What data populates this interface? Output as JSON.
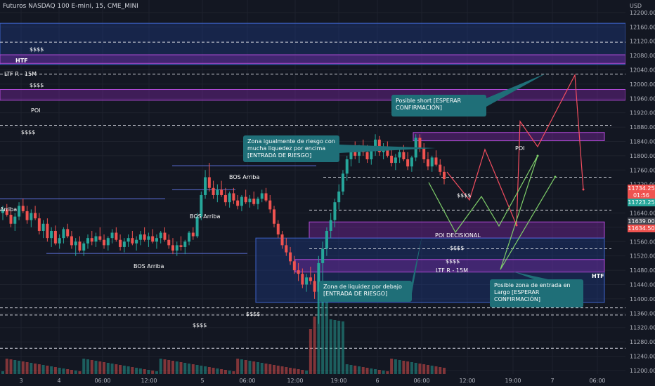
{
  "header": {
    "symbol_title": "Futuros NASDAQ 100 E-mini, 15, CME_MINI",
    "currency": "USD"
  },
  "colors": {
    "background": "#131722",
    "up_candle": "#26a69a",
    "down_candle": "#ef5350",
    "zone_blue": "#1e3a8a",
    "zone_purple": "#6a1b9a",
    "callout": "#1f6f78",
    "projection_red": "#f44d5f",
    "projection_green": "#7fcf6a"
  },
  "chart_data": {
    "type": "candlestick",
    "y_axis": {
      "ticks": [
        12200,
        12160,
        12120,
        12080,
        12040,
        12000,
        11960,
        11920,
        11880,
        11840,
        11800,
        11760,
        11720,
        11680,
        11640,
        11600,
        11560,
        11520,
        11480,
        11440,
        11400,
        11360,
        11320,
        11280,
        11240,
        11200
      ],
      "tick_labels": [
        "12200.00",
        "12160.00",
        "12120.00",
        "12080.00",
        "12040.00",
        "12000.00",
        "11960.00",
        "11920.00",
        "11880.00",
        "11840.00",
        "11800.00",
        "11760.00",
        "11720.00",
        "11680.00",
        "11640.00",
        "11600.00",
        "11560.00",
        "11520.00",
        "11480.00",
        "11440.00",
        "11400.00",
        "11360.00",
        "11320.00",
        "11280.00",
        "11240.00",
        "11200.00"
      ],
      "range": [
        11190,
        12235
      ]
    },
    "x_axis": {
      "tick_labels": [
        "3",
        "4",
        "06:00",
        "12:00",
        "5",
        "06:00",
        "12:00",
        "19:00",
        "6",
        "06:00",
        "12:00",
        "19:00",
        "7",
        "06:00"
      ]
    },
    "price_tags": [
      {
        "label": "11734.25",
        "color": "#ef5350"
      },
      {
        "label": "01:56",
        "color": "#ef5350"
      },
      {
        "label": "11723.25",
        "color": "#26a69a"
      },
      {
        "label": "11639.00",
        "color": "#434651"
      },
      {
        "label": "11634.50",
        "color": "#ef5350"
      }
    ],
    "candles_ohlc": [
      [
        11640,
        11660,
        11620,
        11650
      ],
      [
        11650,
        11665,
        11630,
        11635
      ],
      [
        11635,
        11650,
        11600,
        11610
      ],
      [
        11610,
        11640,
        11590,
        11630
      ],
      [
        11630,
        11670,
        11620,
        11660
      ],
      [
        11660,
        11680,
        11640,
        11645
      ],
      [
        11645,
        11660,
        11610,
        11620
      ],
      [
        11620,
        11650,
        11600,
        11640
      ],
      [
        11640,
        11660,
        11620,
        11625
      ],
      [
        11625,
        11640,
        11580,
        11590
      ],
      [
        11590,
        11620,
        11570,
        11610
      ],
      [
        11610,
        11625,
        11560,
        11570
      ],
      [
        11570,
        11600,
        11545,
        11590
      ],
      [
        11590,
        11605,
        11550,
        11555
      ],
      [
        11555,
        11580,
        11540,
        11570
      ],
      [
        11570,
        11600,
        11555,
        11595
      ],
      [
        11595,
        11610,
        11570,
        11575
      ],
      [
        11575,
        11590,
        11540,
        11550
      ],
      [
        11550,
        11570,
        11520,
        11560
      ],
      [
        11560,
        11575,
        11530,
        11535
      ],
      [
        11535,
        11560,
        11520,
        11555
      ],
      [
        11555,
        11580,
        11540,
        11570
      ],
      [
        11570,
        11590,
        11550,
        11560
      ],
      [
        11560,
        11585,
        11545,
        11575
      ],
      [
        11575,
        11600,
        11560,
        11565
      ],
      [
        11565,
        11580,
        11540,
        11550
      ],
      [
        11550,
        11575,
        11535,
        11570
      ],
      [
        11570,
        11595,
        11555,
        11585
      ],
      [
        11585,
        11600,
        11560,
        11565
      ],
      [
        11565,
        11580,
        11535,
        11545
      ],
      [
        11545,
        11570,
        11530,
        11560
      ],
      [
        11560,
        11580,
        11545,
        11570
      ],
      [
        11570,
        11590,
        11550,
        11555
      ],
      [
        11555,
        11575,
        11535,
        11565
      ],
      [
        11565,
        11590,
        11550,
        11580
      ],
      [
        11580,
        11600,
        11560,
        11565
      ],
      [
        11565,
        11585,
        11545,
        11575
      ],
      [
        11575,
        11595,
        11555,
        11560
      ],
      [
        11560,
        11580,
        11540,
        11570
      ],
      [
        11570,
        11590,
        11555,
        11585
      ],
      [
        11585,
        11600,
        11560,
        11565
      ],
      [
        11565,
        11580,
        11540,
        11550
      ],
      [
        11550,
        11570,
        11525,
        11535
      ],
      [
        11535,
        11560,
        11520,
        11550
      ],
      [
        11550,
        11575,
        11535,
        11545
      ],
      [
        11545,
        11565,
        11525,
        11560
      ],
      [
        11560,
        11590,
        11550,
        11585
      ],
      [
        11585,
        11600,
        11565,
        11575
      ],
      [
        11575,
        11640,
        11570,
        11630
      ],
      [
        11630,
        11700,
        11620,
        11690
      ],
      [
        11690,
        11760,
        11680,
        11740
      ],
      [
        11740,
        11780,
        11700,
        11710
      ],
      [
        11710,
        11730,
        11680,
        11690
      ],
      [
        11690,
        11720,
        11670,
        11705
      ],
      [
        11705,
        11730,
        11685,
        11690
      ],
      [
        11690,
        11710,
        11660,
        11670
      ],
      [
        11670,
        11700,
        11655,
        11695
      ],
      [
        11695,
        11710,
        11665,
        11675
      ],
      [
        11675,
        11690,
        11650,
        11660
      ],
      [
        11660,
        11690,
        11645,
        11685
      ],
      [
        11685,
        11705,
        11665,
        11670
      ],
      [
        11670,
        11690,
        11655,
        11680
      ],
      [
        11680,
        11700,
        11660,
        11665
      ],
      [
        11665,
        11685,
        11650,
        11680
      ],
      [
        11680,
        11705,
        11670,
        11695
      ],
      [
        11695,
        11710,
        11670,
        11675
      ],
      [
        11675,
        11690,
        11640,
        11650
      ],
      [
        11650,
        11660,
        11600,
        11610
      ],
      [
        11610,
        11620,
        11570,
        11580
      ],
      [
        11580,
        11590,
        11540,
        11550
      ],
      [
        11550,
        11570,
        11520,
        11530
      ],
      [
        11530,
        11545,
        11495,
        11505
      ],
      [
        11505,
        11520,
        11470,
        11480
      ],
      [
        11480,
        11500,
        11450,
        11470
      ],
      [
        11470,
        11485,
        11430,
        11440
      ],
      [
        11440,
        11470,
        11420,
        11460
      ],
      [
        11460,
        11490,
        11440,
        11450
      ],
      [
        11450,
        11470,
        11400,
        11420
      ],
      [
        11420,
        11520,
        11330,
        11500
      ],
      [
        11500,
        11560,
        11380,
        11540
      ],
      [
        11540,
        11600,
        11520,
        11590
      ],
      [
        11590,
        11640,
        11570,
        11620
      ],
      [
        11620,
        11680,
        11600,
        11670
      ],
      [
        11670,
        11720,
        11650,
        11700
      ],
      [
        11700,
        11760,
        11690,
        11750
      ],
      [
        11750,
        11800,
        11730,
        11790
      ],
      [
        11790,
        11830,
        11770,
        11815
      ],
      [
        11815,
        11840,
        11790,
        11800
      ],
      [
        11800,
        11830,
        11780,
        11820
      ],
      [
        11820,
        11845,
        11800,
        11810
      ],
      [
        11810,
        11830,
        11780,
        11790
      ],
      [
        11790,
        11820,
        11775,
        11815
      ],
      [
        11815,
        11860,
        11800,
        11845
      ],
      [
        11845,
        11855,
        11800,
        11810
      ],
      [
        11810,
        11835,
        11790,
        11825
      ],
      [
        11825,
        11840,
        11795,
        11800
      ],
      [
        11800,
        11820,
        11770,
        11780
      ],
      [
        11780,
        11805,
        11760,
        11795
      ],
      [
        11795,
        11820,
        11780,
        11810
      ],
      [
        11810,
        11830,
        11785,
        11790
      ],
      [
        11790,
        11810,
        11760,
        11770
      ],
      [
        11770,
        11800,
        11755,
        11795
      ],
      [
        11795,
        11860,
        11785,
        11850
      ],
      [
        11850,
        11860,
        11810,
        11820
      ],
      [
        11820,
        11835,
        11780,
        11790
      ],
      [
        11790,
        11810,
        11760,
        11770
      ],
      [
        11770,
        11800,
        11755,
        11795
      ],
      [
        11795,
        11815,
        11770,
        11775
      ],
      [
        11775,
        11790,
        11745,
        11755
      ],
      [
        11755,
        11770,
        11720,
        11735
      ]
    ],
    "zones": [
      {
        "type": "rect",
        "color": "blue",
        "price_top": 12170,
        "price_bottom": 12055,
        "labels": [
          "$$$$",
          "HTF"
        ]
      },
      {
        "type": "rect",
        "color": "purple",
        "price_top": 12082,
        "price_bottom": 12058,
        "labels": [
          "LTF R - 15M"
        ]
      },
      {
        "type": "rect",
        "color": "purple",
        "price_top": 11985,
        "price_bottom": 11955,
        "labels": [
          "POI"
        ]
      },
      {
        "type": "rect",
        "color": "purple",
        "price_top": 11865,
        "price_bottom": 11842,
        "labels": [
          "POI"
        ]
      },
      {
        "type": "rect",
        "color": "purple",
        "price_top": 11615,
        "price_bottom": 11570,
        "labels": [
          "POI DECISIONAL"
        ]
      },
      {
        "type": "rect",
        "color": "blue",
        "price_top": 11570,
        "price_bottom": 11390,
        "labels": [
          "HTF"
        ]
      },
      {
        "type": "rect",
        "color": "purple",
        "price_top": 11510,
        "price_bottom": 11475,
        "labels": [
          "LTF R - 15M"
        ]
      }
    ],
    "dashed_levels": [
      12117,
      12028,
      11885,
      11740,
      11648,
      11540,
      11375,
      11355,
      11262
    ],
    "bos_lines": [
      {
        "label": "BOS Arriba",
        "price": 11772
      },
      {
        "label": "BOS Arriba",
        "price": 11705
      },
      {
        "label": "BOS Arriba",
        "price": 11527
      },
      {
        "label": "Arriba",
        "price": 11680
      }
    ],
    "liquidity_labels": [
      "$$$$",
      "$$$$",
      "$$$$",
      "$$$$",
      "$$$$",
      "$$$$",
      "$$$$",
      "$$$$"
    ],
    "annotations": [
      "Zona igualmente de riesgo con mucha liquedez por encima [ENTRADA DE RIESGO]",
      "Posible short [ESPERAR CONFIRMACIÓN]",
      "Zona de liquidez por debajo [ENTRADA DE RIESGO]",
      "Posible zona de entrada en Largo [ESPERAR CONFIRMACIÓN]"
    ],
    "projection_red": [
      11720,
      11680,
      11840,
      11700,
      11630
    ],
    "projection_green": [
      11720,
      11560,
      11640,
      11540,
      11770
    ]
  },
  "labels": {
    "usd_top": "$$$$",
    "htf_top": "HTF",
    "ltf_top": "LTF R - 15M",
    "usd_2": "$$$$",
    "poi_top": "POI",
    "usd_3": "$$$$",
    "poi_right": "POI",
    "bos_1": "BOS Arriba",
    "bos_2": "BOS Arriba",
    "bos_3": "BOS Arriba",
    "bos_left": "Arriba",
    "usd_4": "$$$$",
    "poi_decisional": "POI DECISIONAL",
    "usd_5": "$$$$",
    "usd_6": "$$$$",
    "ltf_bottom": "LTF R - 15M",
    "htf_bottom": "HTF",
    "usd_7": "$$$$",
    "usd_8": "$$$$",
    "callout_1": "Zona igualmente de riesgo con mucha liquedez por encima [ENTRADA DE RIESGO]",
    "callout_2": "Posible short [ESPERAR CONFIRMACIÓN]",
    "callout_3": "Zona de liquidez por debajo [ENTRADA DE RIESGO]",
    "callout_4": "Posible zona de entrada en Largo [ESPERAR CONFIRMACIÓN]"
  }
}
